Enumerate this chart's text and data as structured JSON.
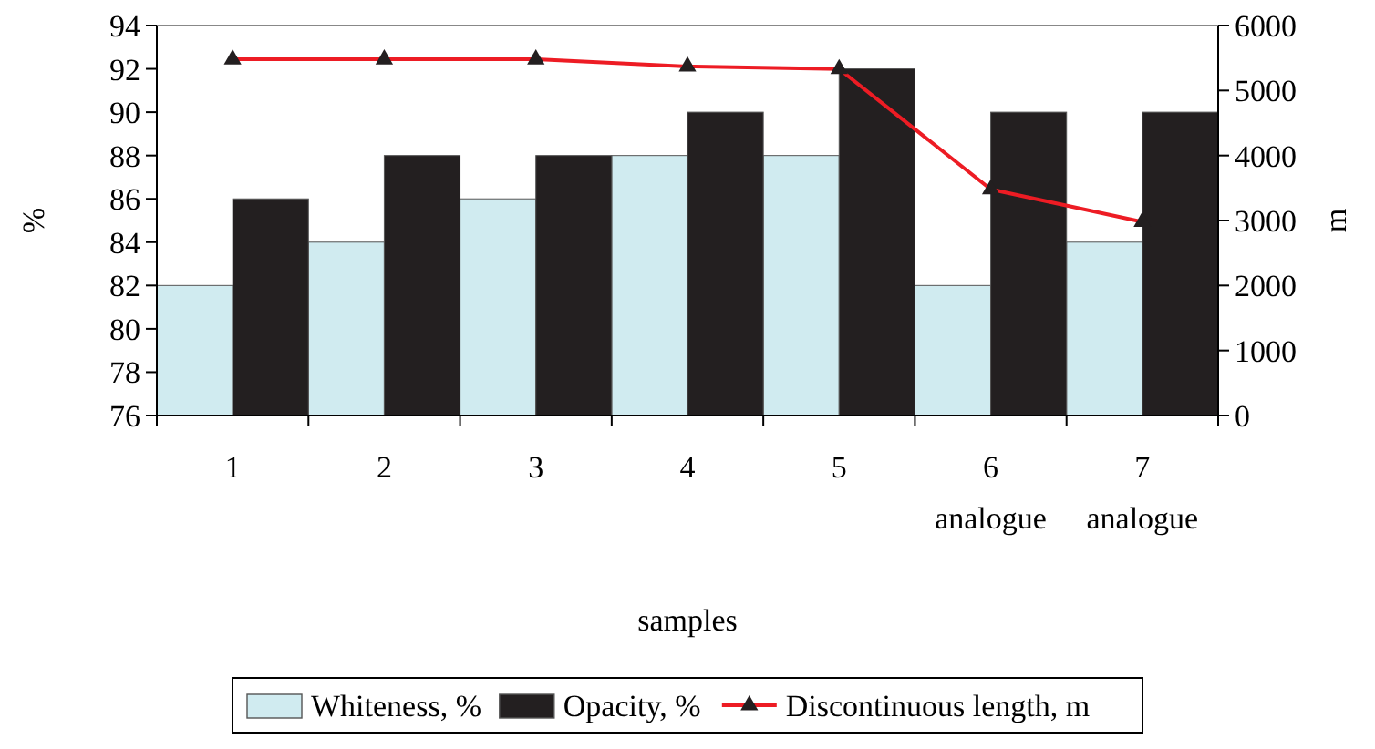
{
  "chart_data": {
    "type": "bar",
    "xlabel": "samples",
    "ylabel": "%",
    "y2label": "m",
    "categories": [
      "1",
      "2",
      "3",
      "4",
      "5",
      "6\nanalogue",
      "7\nanalogue"
    ],
    "series": [
      {
        "name": "Whiteness, %",
        "color": "#d0ebf0",
        "values": [
          82,
          84,
          86,
          88,
          88,
          82,
          84
        ]
      },
      {
        "name": "Opacity, %",
        "color": "#231f20",
        "values": [
          86,
          88,
          88,
          90,
          92,
          90,
          90
        ]
      },
      {
        "name": "Discontinuous length, m",
        "type": "line",
        "axis": "y2",
        "color": "#ed1c24",
        "marker": "triangle",
        "values": [
          5480,
          5480,
          5480,
          5370,
          5330,
          3480,
          2980
        ]
      }
    ],
    "ylim": [
      76,
      94
    ],
    "yticks": [
      76,
      78,
      80,
      82,
      84,
      86,
      88,
      90,
      92,
      94
    ],
    "y2lim": [
      0,
      6000
    ],
    "y2ticks": [
      0,
      1000,
      2000,
      3000,
      4000,
      5000,
      6000
    ],
    "legend": "bottom"
  }
}
